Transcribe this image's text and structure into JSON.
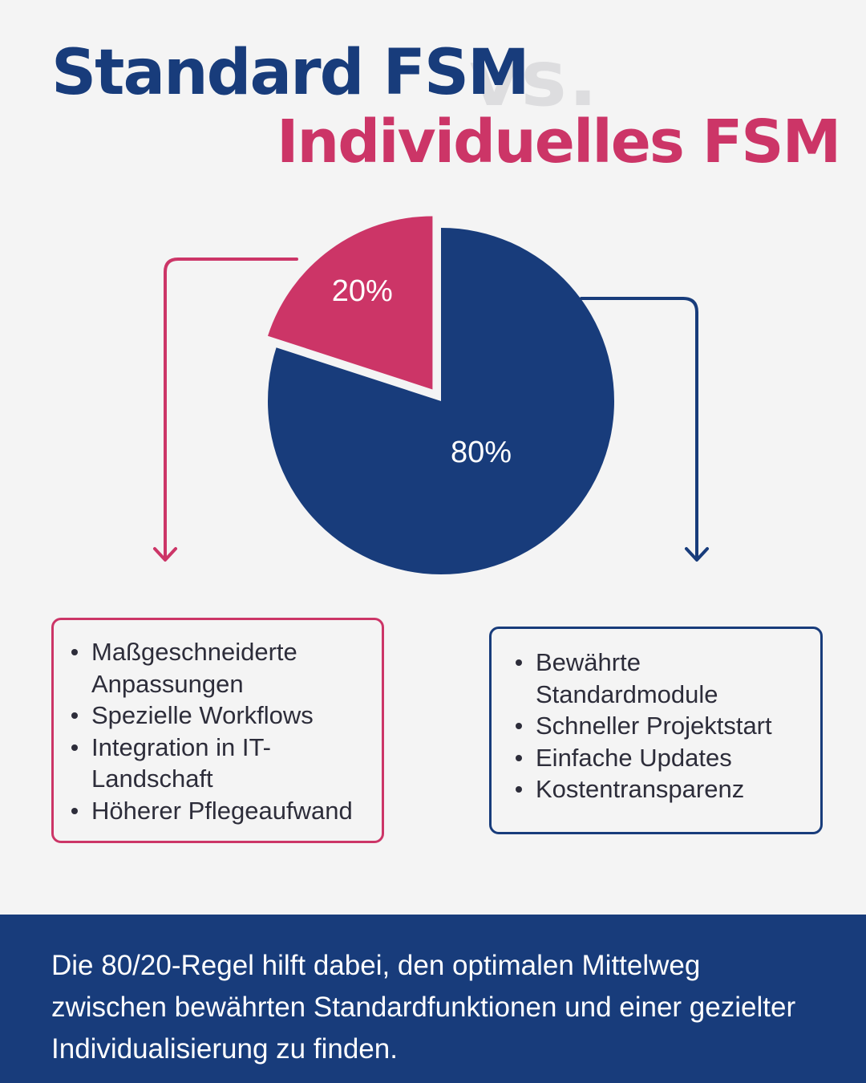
{
  "colors": {
    "background": "#f4f4f4",
    "standard_blue": "#183c7b",
    "individual_pink": "#cc3567",
    "vs_gray": "#dddddf",
    "text_dark": "#2d2d3a"
  },
  "header": {
    "title_standard": "Standard FSM",
    "vs": "vs.",
    "title_individual": "Individuelles FSM"
  },
  "chart_data": {
    "type": "pie",
    "slices": [
      {
        "label": "20%",
        "value": 20,
        "color": "#cc3567",
        "exploded": true
      },
      {
        "label": "80%",
        "value": 80,
        "color": "#183c7b",
        "exploded": false
      }
    ],
    "start": "12 o'clock",
    "direction": "counter-clockwise for the 20% slice"
  },
  "individual_box": {
    "items": [
      "Maßgeschneiderte Anpassungen",
      "Spezielle Workflows",
      "Integration in IT-Landschaft",
      "Höherer Pflegeaufwand"
    ]
  },
  "standard_box": {
    "items": [
      "Bewährte Standardmodule",
      "Schneller Projektstart",
      "Einfache Updates",
      "Kostentransparenz"
    ]
  },
  "footer": {
    "text": "Die 80/20-Regel hilft dabei, den optimalen Mittelweg zwischen bewährten Standardfunktionen und einer gezielter Individualisierung zu finden."
  }
}
